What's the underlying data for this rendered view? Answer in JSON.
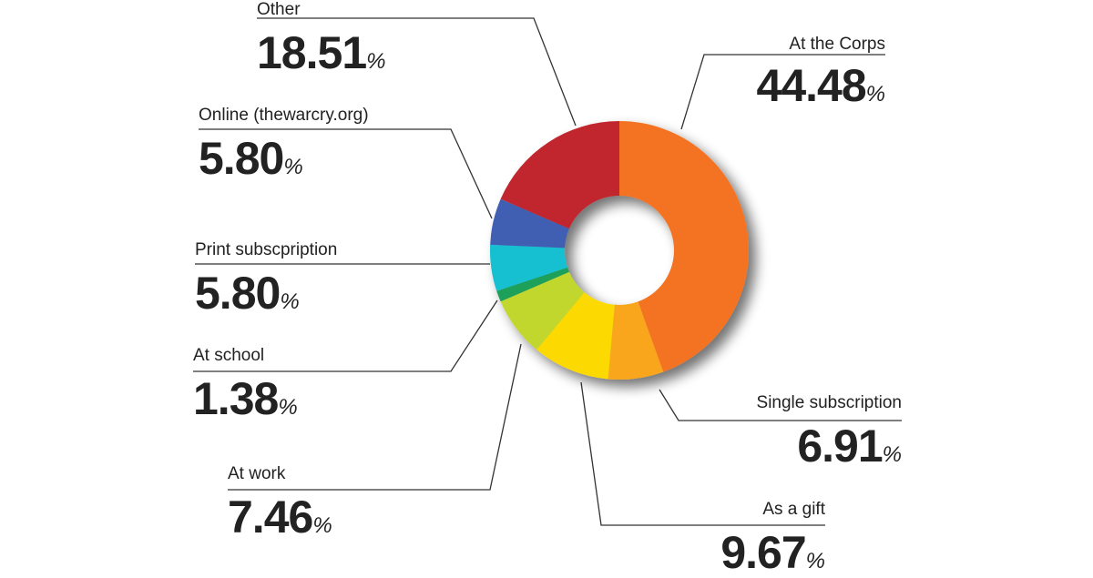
{
  "chart_data": {
    "type": "pie",
    "subtype": "donut",
    "unit": "%",
    "slices": [
      {
        "label": "At the Corps",
        "value": 44.48,
        "display": "44.48",
        "color": "#f47321"
      },
      {
        "label": "Single subscription",
        "value": 6.91,
        "display": "6.91",
        "color": "#faa61a"
      },
      {
        "label": "As a gift",
        "value": 9.67,
        "display": "9.67",
        "color": "#fcd900"
      },
      {
        "label": "At work",
        "value": 7.46,
        "display": "7.46",
        "color": "#c2d72f"
      },
      {
        "label": "At school",
        "value": 1.38,
        "display": "1.38",
        "color": "#1aa05a"
      },
      {
        "label": "Print subscpription",
        "value": 5.8,
        "display": "5.80",
        "color": "#17c0d1"
      },
      {
        "label": "Online (thewarcry.org)",
        "value": 5.8,
        "display": "5.80",
        "color": "#3f5fb3"
      },
      {
        "label": "Other",
        "value": 18.51,
        "display": "18.51",
        "color": "#c1272d"
      }
    ],
    "legend": "callout-labels"
  }
}
